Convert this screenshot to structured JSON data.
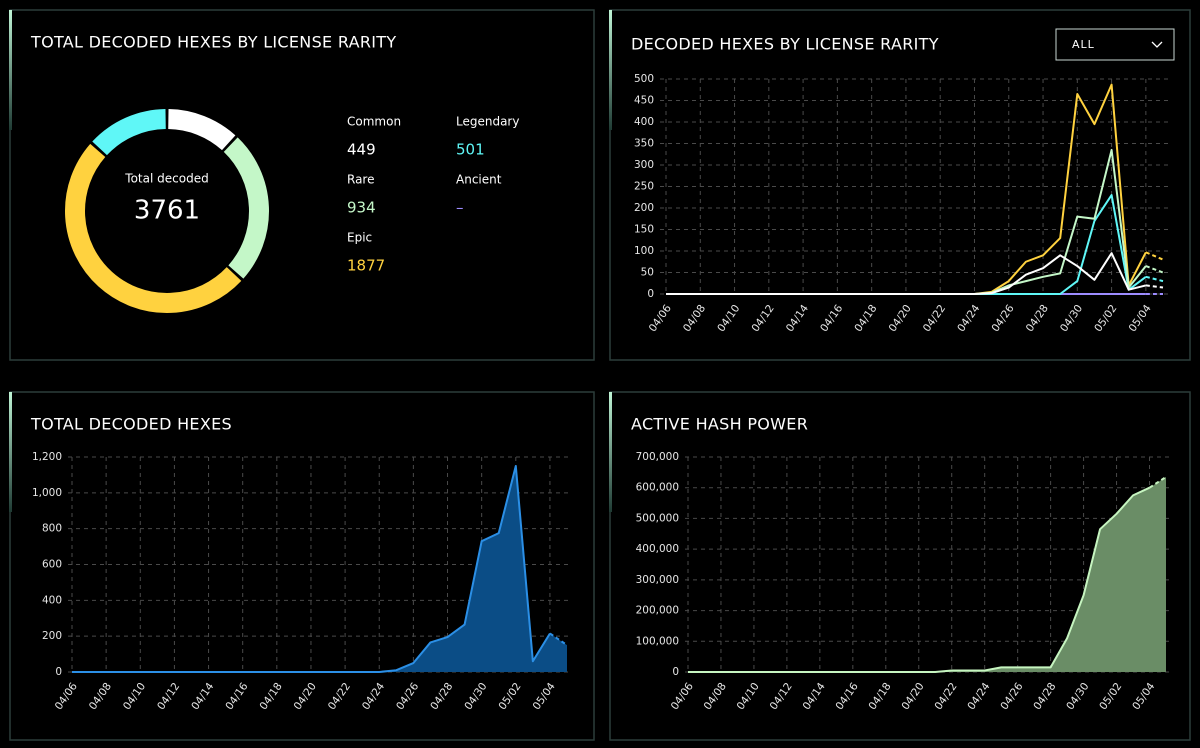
{
  "chart_data": [
    {
      "type": "pie",
      "title": "TOTAL DECODED HEXES BY LICENSE RARITY",
      "center_label": "Total decoded",
      "total": 3761,
      "categories": [
        "Common",
        "Rare",
        "Epic",
        "Legendary",
        "Ancient"
      ],
      "values": [
        449,
        934,
        1877,
        501,
        null
      ],
      "value_labels": [
        "449",
        "934",
        "1877",
        "501",
        "–"
      ],
      "colors": [
        "#ffffff",
        "#c4f7c8",
        "#ffd23f",
        "#5ff7f7",
        "#9d8cff"
      ]
    },
    {
      "type": "line",
      "title": "DECODED HEXES BY LICENSE RARITY",
      "filter": "ALL",
      "categories": [
        "04/06",
        null,
        "04/08",
        null,
        "04/10",
        null,
        "04/12",
        null,
        "04/14",
        null,
        "04/16",
        null,
        "04/18",
        null,
        "04/20",
        null,
        "04/22",
        null,
        "04/24",
        null,
        "04/26",
        null,
        "04/28",
        null,
        "04/30",
        null,
        "05/02",
        null,
        "05/04",
        null
      ],
      "series": [
        {
          "name": "Common",
          "color": "#ffffff",
          "values": [
            0,
            0,
            0,
            0,
            0,
            0,
            0,
            0,
            0,
            0,
            0,
            0,
            0,
            0,
            0,
            0,
            0,
            0,
            0,
            2,
            15,
            45,
            60,
            90,
            65,
            33,
            95,
            10,
            20,
            15
          ]
        },
        {
          "name": "Rare",
          "color": "#c4f7c8",
          "values": [
            0,
            0,
            0,
            0,
            0,
            0,
            0,
            0,
            0,
            0,
            0,
            0,
            0,
            0,
            0,
            0,
            0,
            0,
            0,
            3,
            20,
            30,
            40,
            48,
            180,
            175,
            335,
            15,
            65,
            50
          ]
        },
        {
          "name": "Epic",
          "color": "#ffd23f",
          "values": [
            0,
            0,
            0,
            0,
            0,
            0,
            0,
            0,
            0,
            0,
            0,
            0,
            0,
            0,
            0,
            0,
            0,
            0,
            0,
            5,
            30,
            75,
            90,
            130,
            465,
            395,
            487,
            20,
            97,
            80
          ]
        },
        {
          "name": "Legendary",
          "color": "#5ff7f7",
          "values": [
            0,
            0,
            0,
            0,
            0,
            0,
            0,
            0,
            0,
            0,
            0,
            0,
            0,
            0,
            0,
            0,
            0,
            0,
            0,
            0,
            0,
            0,
            0,
            0,
            30,
            170,
            230,
            10,
            40,
            30
          ]
        },
        {
          "name": "Ancient",
          "color": "#9d8cff",
          "values": [
            0,
            0,
            0,
            0,
            0,
            0,
            0,
            0,
            0,
            0,
            0,
            0,
            0,
            0,
            0,
            0,
            0,
            0,
            0,
            0,
            0,
            0,
            0,
            0,
            0,
            0,
            0,
            0,
            0,
            0
          ]
        }
      ],
      "ylim": [
        0,
        500
      ],
      "yticks": [
        0,
        50,
        100,
        150,
        200,
        250,
        300,
        350,
        400,
        450,
        500
      ],
      "grid": true
    },
    {
      "type": "area",
      "title": "TOTAL DECODED HEXES",
      "categories": [
        "04/06",
        null,
        "04/08",
        null,
        "04/10",
        null,
        "04/12",
        null,
        "04/14",
        null,
        "04/16",
        null,
        "04/18",
        null,
        "04/20",
        null,
        "04/22",
        null,
        "04/24",
        null,
        "04/26",
        null,
        "04/28",
        null,
        "04/30",
        null,
        "05/02",
        null,
        "05/04",
        null
      ],
      "series": [
        {
          "name": "Total decoded",
          "color": "#2b8fe6",
          "values": [
            0,
            0,
            0,
            0,
            0,
            0,
            0,
            0,
            0,
            0,
            0,
            0,
            0,
            0,
            0,
            0,
            0,
            0,
            0,
            10,
            50,
            165,
            195,
            265,
            730,
            775,
            1150,
            60,
            215,
            150
          ]
        }
      ],
      "ylim": [
        0,
        1200
      ],
      "yticks": [
        0,
        200,
        400,
        600,
        800,
        {
          "value": 1000,
          "label": "1,000"
        },
        {
          "value": 1200,
          "label": "1,200"
        }
      ],
      "grid": true
    },
    {
      "type": "area",
      "title": "ACTIVE HASH POWER",
      "categories": [
        "04/06",
        null,
        "04/08",
        null,
        "04/10",
        null,
        "04/12",
        null,
        "04/14",
        null,
        "04/16",
        null,
        "04/18",
        null,
        "04/20",
        null,
        "04/22",
        null,
        "04/24",
        null,
        "04/26",
        null,
        "04/28",
        null,
        "04/30",
        null,
        "05/02",
        null,
        "05/04",
        null
      ],
      "series": [
        {
          "name": "Active hash power",
          "color": "#c6f5c0",
          "values": [
            0,
            0,
            0,
            0,
            0,
            0,
            0,
            0,
            0,
            0,
            0,
            0,
            0,
            0,
            0,
            0,
            5000,
            5000,
            5000,
            15000,
            15000,
            15000,
            15000,
            110000,
            250000,
            465000,
            515000,
            575000,
            600000,
            635000
          ]
        }
      ],
      "ylim": [
        0,
        700000
      ],
      "yticks": [
        0,
        {
          "value": 100000,
          "label": "100,000"
        },
        {
          "value": 200000,
          "label": "200,000"
        },
        {
          "value": 300000,
          "label": "300,000"
        },
        {
          "value": 400000,
          "label": "400,000"
        },
        {
          "value": 500000,
          "label": "500,000"
        },
        {
          "value": 600000,
          "label": "600,000"
        },
        {
          "value": 700000,
          "label": "700,000"
        }
      ],
      "grid": true
    }
  ]
}
